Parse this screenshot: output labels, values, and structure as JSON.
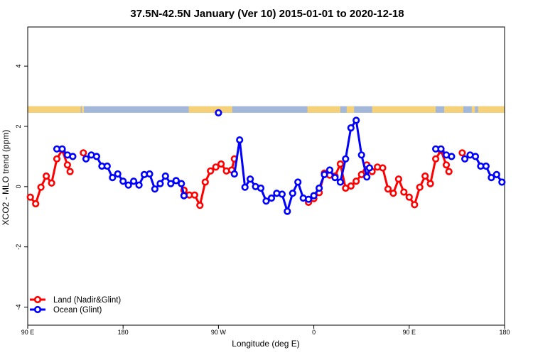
{
  "chart_data": {
    "type": "line",
    "title": "37.5N-42.5N January (Ver 10)   2015-01-01 to 2020-12-18",
    "xlabel": "Longitude (deg E)",
    "ylabel": "XCO2 - MLO trend (ppm)",
    "xlim": [
      90,
      540
    ],
    "ylim": [
      -4.6,
      5.3
    ],
    "x_ticks": [
      {
        "value": 90,
        "label": "90 E"
      },
      {
        "value": 180,
        "label": "180"
      },
      {
        "value": 270,
        "label": "90 W"
      },
      {
        "value": 360,
        "label": "0"
      },
      {
        "value": 450,
        "label": "90 E"
      },
      {
        "value": 540,
        "label": "180"
      }
    ],
    "y_ticks": [
      {
        "value": -4,
        "label": "-4"
      },
      {
        "value": -2,
        "label": "-2"
      },
      {
        "value": 0,
        "label": "0"
      },
      {
        "value": 2,
        "label": "2"
      },
      {
        "value": 4,
        "label": "4"
      }
    ],
    "legend_position": "bottom-left",
    "map_strip": {
      "y_range": [
        2.45,
        2.67
      ],
      "land_color": "#f5d27a",
      "ocean_color": "#a3b8d9",
      "land_spans": [
        [
          90,
          140
        ],
        [
          141,
          143
        ],
        [
          242,
          283
        ],
        [
          354,
          385
        ],
        [
          391,
          398
        ],
        [
          415,
          475
        ],
        [
          483,
          501
        ],
        [
          509,
          512
        ],
        [
          515,
          540
        ]
      ]
    },
    "series": [
      {
        "name": "Land (Nadir&Glint)",
        "color": "#ff0000",
        "segments": [
          [
            [
              92.5,
              -0.35
            ],
            [
              97.5,
              -0.57
            ],
            [
              102.5,
              -0.02
            ],
            [
              107.5,
              0.35
            ],
            [
              112.5,
              0.12
            ],
            [
              117.5,
              0.92
            ],
            [
              122.5,
              1.22
            ],
            [
              127.5,
              0.72
            ],
            [
              130.0,
              0.5
            ]
          ],
          [
            [
              142.5,
              1.12
            ]
          ],
          [
            [
              237.5,
              -0.12
            ],
            [
              242.5,
              -0.28
            ],
            [
              247.5,
              -0.28
            ],
            [
              252.5,
              -0.62
            ],
            [
              257.5,
              0.15
            ],
            [
              262.5,
              0.52
            ],
            [
              267.5,
              0.65
            ],
            [
              272.5,
              0.75
            ],
            [
              277.5,
              0.52
            ],
            [
              282.5,
              0.55
            ],
            [
              285.0,
              0.92
            ]
          ],
          [
            [
              355.0,
              -0.52
            ],
            [
              360.0,
              -0.4
            ],
            [
              365.0,
              -0.2
            ],
            [
              370.0,
              0.45
            ],
            [
              375.0,
              0.38
            ],
            [
              380.0,
              0.35
            ],
            [
              385.0,
              0.75
            ],
            [
              390.0,
              -0.05
            ],
            [
              395.0,
              0.02
            ],
            [
              400.0,
              0.18
            ],
            [
              405.0,
              0.4
            ],
            [
              410.0,
              0.72
            ],
            [
              415.0,
              0.5
            ],
            [
              420.0,
              0.65
            ],
            [
              425.0,
              0.62
            ],
            [
              430.0,
              -0.08
            ],
            [
              435.0,
              -0.22
            ],
            [
              440.0,
              0.25
            ],
            [
              445.0,
              -0.18
            ],
            [
              450.0,
              -0.35
            ],
            [
              455.0,
              -0.6
            ],
            [
              460.0,
              -0.02
            ],
            [
              465.0,
              0.35
            ],
            [
              470.0,
              0.1
            ],
            [
              475.0,
              0.92
            ],
            [
              480.0,
              1.2
            ],
            [
              485.0,
              0.72
            ],
            [
              487.5,
              0.5
            ]
          ],
          [
            [
              500.0,
              1.12
            ]
          ]
        ]
      },
      {
        "name": "Ocean (Glint)",
        "color": "#0000ff",
        "segments": [
          [
            [
              117.5,
              1.25
            ],
            [
              122.5,
              1.25
            ],
            [
              127.5,
              1.05
            ],
            [
              132.5,
              1.0
            ]
          ],
          [
            [
              145.0,
              0.92
            ],
            [
              150.0,
              1.05
            ],
            [
              155.0,
              1.0
            ],
            [
              160.0,
              0.68
            ],
            [
              165.0,
              0.68
            ],
            [
              170.0,
              0.3
            ],
            [
              175.0,
              0.42
            ],
            [
              180.0,
              0.18
            ],
            [
              185.0,
              0.05
            ],
            [
              190.0,
              0.18
            ],
            [
              195.0,
              0.05
            ],
            [
              200.0,
              0.4
            ],
            [
              205.0,
              0.42
            ],
            [
              210.0,
              -0.08
            ],
            [
              215.0,
              0.1
            ],
            [
              220.0,
              0.35
            ],
            [
              225.0,
              0.1
            ],
            [
              230.0,
              0.2
            ],
            [
              235.0,
              0.1
            ],
            [
              237.5,
              -0.3
            ]
          ],
          [
            [
              270.0,
              2.45
            ]
          ],
          [
            [
              285.0,
              0.42
            ],
            [
              290.0,
              1.55
            ],
            [
              295.0,
              -0.02
            ],
            [
              300.0,
              0.25
            ],
            [
              305.0,
              0.0
            ],
            [
              310.0,
              -0.05
            ],
            [
              315.0,
              -0.48
            ],
            [
              320.0,
              -0.38
            ],
            [
              325.0,
              -0.22
            ],
            [
              330.0,
              -0.25
            ],
            [
              335.0,
              -0.82
            ],
            [
              340.0,
              -0.22
            ],
            [
              345.0,
              0.15
            ],
            [
              350.0,
              -0.38
            ],
            [
              355.0,
              -0.42
            ],
            [
              360.0,
              -0.3
            ],
            [
              365.0,
              -0.05
            ],
            [
              370.0,
              0.4
            ],
            [
              375.0,
              0.55
            ],
            [
              380.0,
              0.3
            ],
            [
              385.0,
              0.15
            ],
            [
              390.0,
              0.92
            ],
            [
              395.0,
              1.95
            ],
            [
              400.0,
              2.2
            ],
            [
              405.0,
              1.05
            ],
            [
              410.0,
              0.32
            ],
            [
              412.5,
              0.62
            ]
          ],
          [
            [
              475.0,
              1.25
            ],
            [
              480.0,
              1.25
            ],
            [
              485.0,
              1.05
            ],
            [
              490.0,
              1.0
            ]
          ],
          [
            [
              502.5,
              0.92
            ],
            [
              507.5,
              1.05
            ],
            [
              512.5,
              1.0
            ],
            [
              517.5,
              0.68
            ],
            [
              522.5,
              0.68
            ],
            [
              527.5,
              0.3
            ],
            [
              532.5,
              0.4
            ],
            [
              537.5,
              0.15
            ]
          ]
        ]
      }
    ]
  }
}
